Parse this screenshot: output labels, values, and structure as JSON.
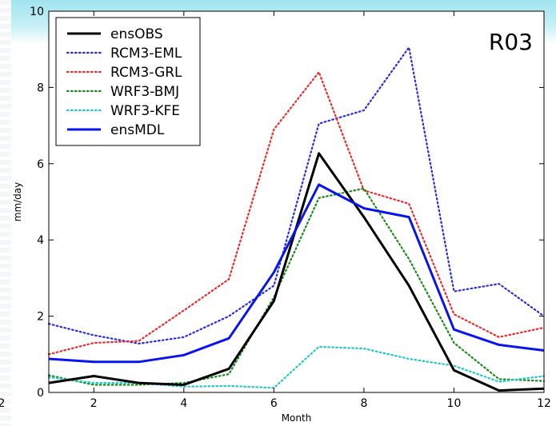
{
  "chart_data": {
    "type": "line",
    "annotation": "R03",
    "xlabel": "Month",
    "ylabel": "mm/day",
    "xlim": [
      1,
      12
    ],
    "ylim": [
      0,
      10
    ],
    "x": [
      1,
      2,
      3,
      4,
      5,
      6,
      7,
      8,
      9,
      10,
      11,
      12
    ],
    "xticks": [
      "2",
      "4",
      "6",
      "8",
      "10",
      "12"
    ],
    "xtick_values": [
      2,
      4,
      6,
      8,
      10,
      12
    ],
    "yticks": [
      "0",
      "2",
      "4",
      "6",
      "8",
      "10"
    ],
    "ytick_values": [
      0,
      2,
      4,
      6,
      8,
      10
    ],
    "left_cut_label": "2",
    "legend_position": "top-left",
    "grid": false,
    "series": [
      {
        "name": "ensOBS",
        "color": "#000000",
        "style": "solid",
        "values": [
          0.25,
          0.43,
          0.25,
          0.2,
          0.62,
          2.4,
          6.27,
          4.6,
          2.8,
          0.58,
          0.05,
          0.1
        ]
      },
      {
        "name": "RCM3-EML",
        "color": "#2a2ae8",
        "style": "dotted",
        "values": [
          1.8,
          1.5,
          1.28,
          1.45,
          2.0,
          2.8,
          7.05,
          7.4,
          9.05,
          2.65,
          2.85,
          2.0
        ]
      },
      {
        "name": "RCM3-GRL",
        "color": "#ee2a2a",
        "style": "dotted",
        "values": [
          1.0,
          1.3,
          1.35,
          2.15,
          2.97,
          6.9,
          8.4,
          5.3,
          4.95,
          2.05,
          1.45,
          1.7
        ]
      },
      {
        "name": "WRF3-BMJ",
        "color": "#1a8a1a",
        "style": "dotted",
        "values": [
          0.45,
          0.2,
          0.2,
          0.25,
          0.48,
          2.5,
          5.1,
          5.35,
          3.5,
          1.3,
          0.35,
          0.3
        ]
      },
      {
        "name": "WRF3-KFE",
        "color": "#20c8c8",
        "style": "dotted",
        "values": [
          0.4,
          0.25,
          0.25,
          0.15,
          0.17,
          0.12,
          1.2,
          1.15,
          0.88,
          0.7,
          0.28,
          0.43
        ]
      },
      {
        "name": "ensMDL",
        "color": "#0a14ee",
        "style": "solid",
        "values": [
          0.88,
          0.8,
          0.8,
          0.98,
          1.42,
          3.15,
          5.45,
          4.83,
          4.6,
          1.65,
          1.25,
          1.1
        ]
      }
    ]
  }
}
